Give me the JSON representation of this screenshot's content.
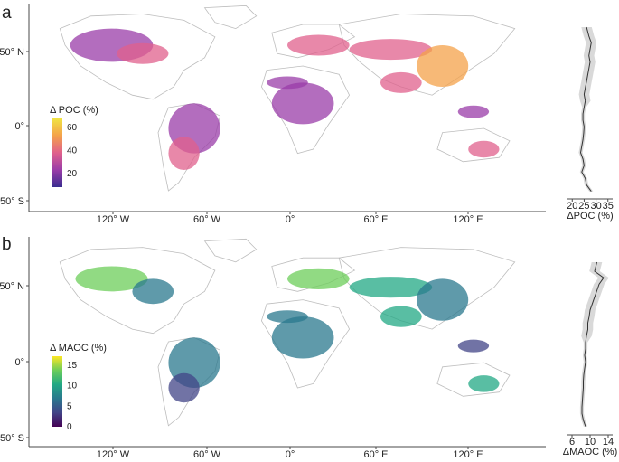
{
  "panels": [
    {
      "letter": "a",
      "legend_title": "Δ POC (%)",
      "legend_ticks": [
        "60",
        "40",
        "20"
      ],
      "legend_colors": [
        "#f0e442",
        "#f4a14a",
        "#e0608c",
        "#9a3ca8",
        "#3a2d8f"
      ],
      "lat_ticks": [
        "50° N",
        "0°",
        "50° S"
      ],
      "lon_ticks": [
        "120° W",
        "60° W",
        "0°",
        "60° E",
        "120° E"
      ],
      "side_ticks": [
        "20",
        "25",
        "30",
        "35"
      ],
      "side_label": "ΔPOC (%)",
      "side_profile": {
        "lat": [
          72,
          65,
          60,
          55,
          50,
          45,
          40,
          35,
          30,
          25,
          20,
          15,
          10,
          5,
          0,
          -5,
          -10,
          -15,
          -20,
          -25,
          -30,
          -35,
          -40,
          -45,
          -50,
          -55
        ],
        "value": [
          26,
          27,
          28,
          27.5,
          27,
          27.5,
          27,
          26.5,
          26,
          25.5,
          25,
          25.5,
          25,
          24.5,
          24.5,
          25,
          24.8,
          24.5,
          24,
          23.5,
          24.5,
          25,
          24,
          25.5,
          26,
          28
        ],
        "xlim": [
          18,
          37
        ]
      },
      "colors": {
        "coastline": "#bdbdbd",
        "frame": "#4a4a4a"
      }
    },
    {
      "letter": "b",
      "legend_title": "Δ MAOC (%)",
      "legend_ticks": [
        "15",
        "10",
        "5",
        "0"
      ],
      "legend_colors": [
        "#fde725",
        "#6ccd5a",
        "#22a884",
        "#2a788e",
        "#414487",
        "#440154"
      ],
      "lat_ticks": [
        "50° N",
        "0°",
        "50° S"
      ],
      "lon_ticks": [
        "120° W",
        "60° W",
        "0°",
        "60° E",
        "120° E"
      ],
      "side_ticks": [
        "6",
        "10",
        "14"
      ],
      "side_label": "ΔMAOC (%)",
      "side_profile": {
        "lat": [
          72,
          65,
          60,
          55,
          50,
          45,
          40,
          35,
          30,
          25,
          20,
          15,
          10,
          5,
          0,
          -5,
          -10,
          -15,
          -20,
          -25,
          -30,
          -35,
          -40,
          -45,
          -50,
          -55
        ],
        "value": [
          11.5,
          11,
          13,
          12,
          11.5,
          11,
          10.5,
          10,
          9.8,
          9.5,
          9.5,
          9.2,
          9,
          9,
          8.8,
          9,
          8.8,
          8.6,
          8.5,
          8.5,
          8.4,
          8.3,
          8.2,
          8.2,
          8.5,
          9
        ],
        "xlim": [
          5,
          15
        ]
      },
      "colors": {
        "coastline": "#bdbdbd",
        "frame": "#4a4a4a"
      }
    }
  ]
}
